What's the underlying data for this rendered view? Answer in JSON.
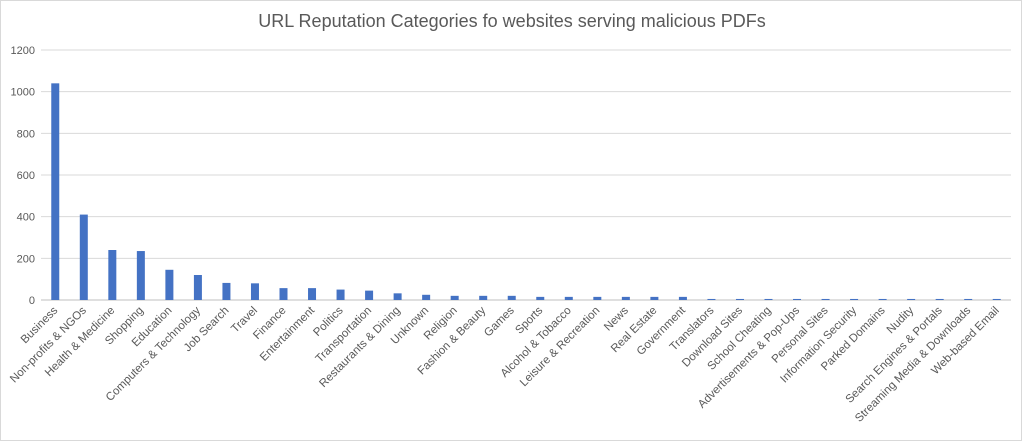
{
  "chart_data": {
    "type": "bar",
    "title": "URL Reputation Categories fo websites serving malicious PDFs",
    "xlabel": "",
    "ylabel": "",
    "ylim": [
      0,
      1200
    ],
    "yticks": [
      0,
      200,
      400,
      600,
      800,
      1000,
      1200
    ],
    "grid": true,
    "legend": "none",
    "bar_color": "#4472c4",
    "categories": [
      "Business",
      "Non-profits & NGOs",
      "Health & Medicine",
      "Shopping",
      "Education",
      "Computers & Technology",
      "Job Search",
      "Travel",
      "Finance",
      "Entertainment",
      "Politics",
      "Transportation",
      "Restaurants & Dining",
      "Unknown",
      "Religion",
      "Fashion & Beauty",
      "Games",
      "Sports",
      "Alcohol & Tobacco",
      "Leisure & Recreation",
      "News",
      "Real Estate",
      "Government",
      "Translators",
      "Download Sites",
      "School Cheating",
      "Advertisements & Pop-Ups",
      "Personal Sites",
      "Information Security",
      "Parked Domains",
      "Nudity",
      "Search Engines & Portals",
      "Streaming Media & Downloads",
      "Web-based Email"
    ],
    "values": [
      1040,
      410,
      240,
      235,
      145,
      120,
      82,
      80,
      57,
      57,
      50,
      45,
      32,
      25,
      20,
      20,
      20,
      15,
      15,
      15,
      15,
      15,
      15,
      5,
      5,
      5,
      5,
      5,
      5,
      5,
      5,
      5,
      5,
      5
    ]
  }
}
